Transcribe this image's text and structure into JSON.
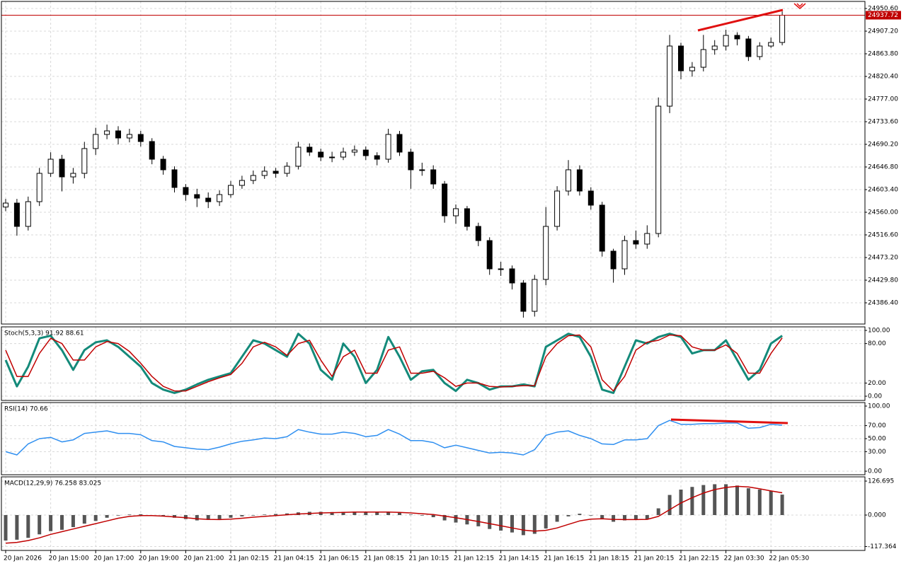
{
  "time_axis": {
    "labels": [
      "20 Jan 2026",
      "20 Jan 15:00",
      "20 Jan 17:00",
      "20 Jan 19:00",
      "20 Jan 21:00",
      "21 Jan 02:15",
      "21 Jan 04:15",
      "21 Jan 06:15",
      "21 Jan 08:15",
      "21 Jan 10:15",
      "21 Jan 12:15",
      "21 Jan 14:15",
      "21 Jan 16:15",
      "21 Jan 18:15",
      "21 Jan 20:15",
      "21 Jan 22:15",
      "22 Jan 03:30",
      "22 Jan 05:30"
    ]
  },
  "chart_data": [
    {
      "type": "candlestick",
      "up_color": "#ffffff",
      "down_color": "#000000",
      "grid": true,
      "last_price": 24937.72,
      "last_price_color": "#c00000",
      "ylim": [
        24345.7,
        24964.2
      ],
      "yticks": [
        {
          "value": 24950.6,
          "label": "24950.60"
        },
        {
          "value": 24907.2,
          "label": "24907.20"
        },
        {
          "value": 24863.8,
          "label": "24863.80"
        },
        {
          "value": 24820.4,
          "label": "24820.40"
        },
        {
          "value": 24777,
          "label": "24777.00"
        },
        {
          "value": 24733.6,
          "label": "24733.60"
        },
        {
          "value": 24690.2,
          "label": "24690.20"
        },
        {
          "value": 24646.8,
          "label": "24646.80"
        },
        {
          "value": 24603.4,
          "label": "24603.40"
        },
        {
          "value": 24560,
          "label": "24560.00"
        },
        {
          "value": 24516.6,
          "label": "24516.60"
        },
        {
          "value": 24473.2,
          "label": "24473.20"
        },
        {
          "value": 24429.8,
          "label": "24429.80"
        },
        {
          "value": 24386.4,
          "label": "24386.40"
        }
      ],
      "open": [
        24570.0,
        24577.6,
        24532.9,
        24580.3,
        24634.6,
        24661.7,
        24627.8,
        24634.6,
        24682.1,
        24709.2,
        24716.0,
        24702.4,
        24709.2,
        24695.6,
        24661.7,
        24641.4,
        24607.5,
        24593.9,
        24587.1,
        24580.3,
        24593.9,
        24611.5,
        24621.0,
        24630.5,
        24638.7,
        24634.6,
        24648.2,
        24684.8,
        24675.3,
        24665.8,
        24665.8,
        24675.3,
        24679.3,
        24668.5,
        24661.7,
        24709.2,
        24675.3,
        24641.4,
        24641.4,
        24614.2,
        24553.2,
        24566.8,
        24532.9,
        24505.7,
        24451.5,
        24451.5,
        24424.4,
        24370.1,
        24431.2,
        24532.9,
        24600.7,
        24641.4,
        24600.7,
        24573.6,
        24485.4,
        24451.5,
        24505.7,
        24499.0,
        24519.3,
        24763.4,
        24878.7,
        24831.2,
        24838.0,
        24871.9,
        24878.7,
        24899.1,
        24892.3,
        24858.4,
        24878.7,
        24885.5
      ],
      "high": [
        24585.6,
        24585.6,
        24590.0,
        24645.0,
        24675.0,
        24670.0,
        24645.0,
        24695.0,
        24722.0,
        24728.0,
        24725.0,
        24720.0,
        24716.0,
        24702.0,
        24668.0,
        24648.0,
        24614.0,
        24605.0,
        24598.0,
        24602.0,
        24620.0,
        24630.0,
        24640.0,
        24648.0,
        24645.0,
        24656.0,
        24695.0,
        24692.0,
        24682.0,
        24676.0,
        24684.0,
        24688.0,
        24686.0,
        24675.0,
        24720.0,
        24716.0,
        24682.0,
        24655.0,
        24650.0,
        24620.0,
        24575.0,
        24572.0,
        24540.0,
        24512.0,
        24465.0,
        24458.0,
        24430.0,
        24440.0,
        24570.0,
        24610.0,
        24660.0,
        24650.0,
        24608.0,
        24580.0,
        24490.0,
        24515.0,
        24525.0,
        24535.0,
        24780.0,
        24900.0,
        24885.0,
        24848.0,
        24900.0,
        24890.0,
        24910.0,
        24905.0,
        24898.0,
        24886.0,
        24895.0,
        24945.0
      ],
      "low": [
        24562.0,
        24515.0,
        24525.0,
        24572.0,
        24628.0,
        24600.0,
        24615.0,
        24625.0,
        24670.0,
        24700.0,
        24690.0,
        24694.0,
        24686.0,
        24652.0,
        24632.0,
        24598.0,
        24582.0,
        24570.0,
        24568.0,
        24572.0,
        24588.0,
        24605.0,
        24614.0,
        24624.0,
        24626.0,
        24628.0,
        24642.0,
        24668.0,
        24658.0,
        24656.0,
        24660.0,
        24668.0,
        24660.0,
        24650.0,
        24655.0,
        24668.0,
        24605.0,
        24630.0,
        24605.0,
        24540.0,
        24538.0,
        24525.0,
        24495.0,
        24440.0,
        24438.0,
        24412.0,
        24358.0,
        24360.0,
        24420.0,
        24525.0,
        24592.0,
        24592.0,
        24565.0,
        24475.0,
        24425.0,
        24440.0,
        24490.0,
        24490.0,
        24512.0,
        24750.0,
        24815.0,
        24820.0,
        24830.0,
        24862.0,
        24870.0,
        24880.0,
        24850.0,
        24852.0,
        24875.0,
        24880.0
      ],
      "close": [
        24577.6,
        24532.9,
        24580.3,
        24634.6,
        24661.7,
        24627.8,
        24634.6,
        24682.1,
        24709.2,
        24716.0,
        24702.4,
        24709.2,
        24695.6,
        24661.7,
        24641.4,
        24607.5,
        24593.9,
        24587.1,
        24580.3,
        24593.9,
        24611.5,
        24621.0,
        24630.5,
        24638.7,
        24634.6,
        24648.2,
        24684.8,
        24675.3,
        24665.8,
        24665.8,
        24675.3,
        24679.3,
        24668.5,
        24661.7,
        24709.2,
        24675.3,
        24641.4,
        24641.4,
        24614.2,
        24553.2,
        24566.8,
        24532.9,
        24505.7,
        24451.5,
        24451.5,
        24424.4,
        24370.1,
        24431.2,
        24532.9,
        24600.7,
        24641.4,
        24600.7,
        24573.6,
        24485.4,
        24451.5,
        24505.7,
        24499.0,
        24519.3,
        24763.4,
        24878.7,
        24831.2,
        24838.0,
        24871.9,
        24878.7,
        24899.1,
        24892.3,
        24858.4,
        24878.7,
        24885.5,
        24937.72
      ]
    },
    {
      "type": "line",
      "title": "Stoch(5,3,3) 91.92 88.61",
      "grid": true,
      "ylim": [
        -6.45,
        105.4
      ],
      "yticks": [
        {
          "value": 100,
          "label": "100.00"
        },
        {
          "value": 80,
          "label": "80.00"
        },
        {
          "value": 20,
          "label": "20.00"
        },
        {
          "value": 0,
          "label": "0.00"
        }
      ],
      "series": [
        {
          "color": "#148a7a",
          "width": 3,
          "values": [
            55,
            15,
            45,
            88,
            92,
            70,
            40,
            70,
            82,
            85,
            75,
            60,
            45,
            20,
            10,
            5,
            10,
            18,
            25,
            30,
            35,
            60,
            85,
            80,
            70,
            60,
            95,
            80,
            40,
            25,
            80,
            60,
            20,
            40,
            90,
            60,
            25,
            38,
            40,
            20,
            8,
            25,
            20,
            10,
            15,
            15,
            18,
            15,
            75,
            85,
            95,
            90,
            60,
            10,
            5,
            45,
            85,
            80,
            90,
            95,
            90,
            65,
            70,
            70,
            85,
            55,
            25,
            40,
            80,
            91.92
          ]
        },
        {
          "color": "#c00000",
          "width": 1.5,
          "values": [
            70,
            30,
            30,
            65,
            88,
            80,
            55,
            55,
            75,
            83,
            80,
            68,
            50,
            30,
            15,
            8,
            8,
            15,
            22,
            28,
            33,
            50,
            75,
            82,
            75,
            62,
            80,
            85,
            55,
            30,
            60,
            70,
            35,
            35,
            70,
            75,
            35,
            35,
            38,
            28,
            15,
            20,
            20,
            15,
            14,
            15,
            16,
            16,
            60,
            80,
            92,
            93,
            75,
            25,
            8,
            30,
            70,
            82,
            85,
            93,
            92,
            75,
            70,
            70,
            78,
            65,
            35,
            35,
            65,
            88.61
          ]
        }
      ]
    },
    {
      "type": "line",
      "title": "RSI(14) 70.66",
      "grid": true,
      "ylim": [
        -5.4,
        105.4
      ],
      "yticks": [
        {
          "value": 100,
          "label": "100.00"
        },
        {
          "value": 70,
          "label": "70.00"
        },
        {
          "value": 50,
          "label": "50.00"
        },
        {
          "value": 30,
          "label": "30.00"
        },
        {
          "value": 0,
          "label": "0.00"
        }
      ],
      "series": [
        {
          "color": "#2f8ff0",
          "width": 1.5,
          "values": [
            30,
            25,
            42,
            50,
            52,
            45,
            48,
            58,
            60,
            62,
            58,
            58,
            56,
            47,
            45,
            38,
            36,
            34,
            33,
            37,
            42,
            46,
            48,
            51,
            50,
            53,
            64,
            60,
            57,
            57,
            60,
            58,
            53,
            55,
            64,
            57,
            47,
            47,
            44,
            36,
            40,
            36,
            32,
            28,
            29,
            28,
            25,
            33,
            55,
            60,
            62,
            55,
            50,
            42,
            41,
            48,
            48,
            50,
            70,
            78,
            72,
            72,
            73,
            73,
            74,
            74,
            66,
            67,
            72,
            70.66
          ]
        }
      ]
    },
    {
      "type": "combo",
      "title": "MACD(12,29,9) 76.258 83.025",
      "grid": true,
      "ylim": [
        -132,
        142.5
      ],
      "yticks": [
        126.695,
        {
          "value": 0,
          "label": "0.000"
        },
        -117.364
      ],
      "series": [
        {
          "type": "bar",
          "color": "#555555",
          "values": [
            -95,
            -92,
            -85,
            -72,
            -60,
            -55,
            -45,
            -32,
            -22,
            -10,
            -2,
            2,
            3,
            0,
            -5,
            -10,
            -15,
            -20,
            -18,
            -15,
            -10,
            -5,
            -2,
            2,
            4,
            6,
            10,
            12,
            12,
            11,
            12,
            13,
            12,
            10,
            11,
            8,
            2,
            -2,
            -8,
            -20,
            -28,
            -35,
            -42,
            -52,
            -58,
            -65,
            -75,
            -70,
            -50,
            -25,
            -5,
            5,
            -2,
            -15,
            -25,
            -20,
            -18,
            -15,
            25,
            75,
            95,
            105,
            112,
            115,
            115,
            110,
            100,
            95,
            90,
            76.258
          ]
        },
        {
          "type": "line",
          "color": "#c00000",
          "width": 1.5,
          "values": [
            -105,
            -102,
            -95,
            -85,
            -72,
            -62,
            -52,
            -42,
            -32,
            -22,
            -12,
            -5,
            -2,
            -2,
            -4,
            -7,
            -10,
            -14,
            -16,
            -17,
            -15,
            -12,
            -8,
            -5,
            -2,
            1,
            4,
            6,
            8,
            9,
            10,
            11,
            11,
            11,
            11,
            10,
            8,
            5,
            2,
            -4,
            -10,
            -17,
            -24,
            -32,
            -40,
            -48,
            -56,
            -60,
            -57,
            -48,
            -35,
            -22,
            -15,
            -14,
            -16,
            -17,
            -17,
            -16,
            -5,
            20,
            45,
            65,
            82,
            95,
            103,
            107,
            105,
            98,
            90,
            83.025
          ]
        }
      ]
    }
  ]
}
